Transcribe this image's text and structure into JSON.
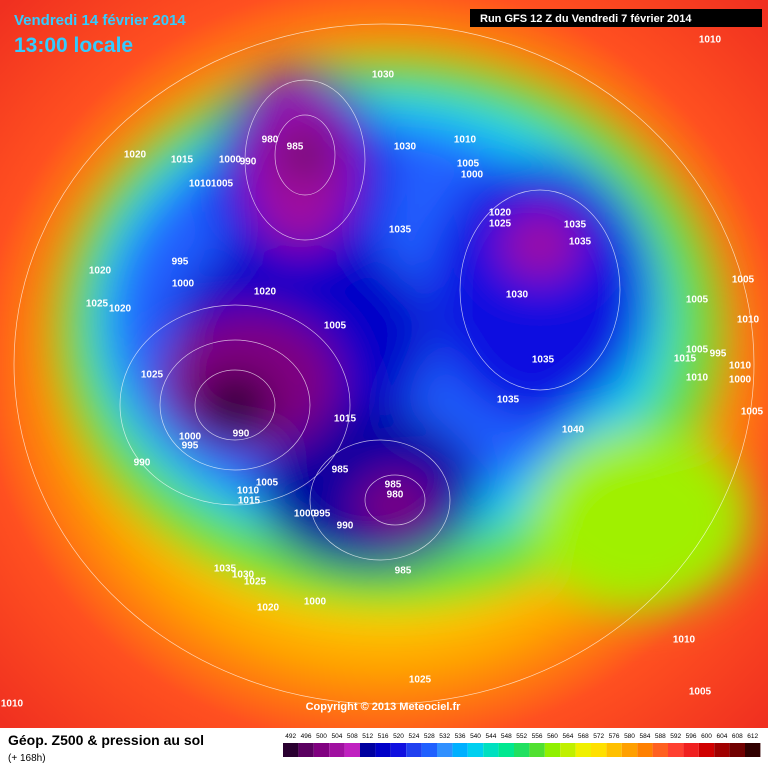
{
  "header": {
    "date": "Vendredi 14 février 2014",
    "time": "13:00 locale",
    "run": "Run GFS 12 Z du Vendredi 7 février 2014"
  },
  "copyright": "Copyright © 2013 Meteociel.fr",
  "footer": {
    "title": "Géop. Z500 & pression au sol",
    "lead": "(+ 168h)"
  },
  "scale": {
    "labels": [
      "492",
      "496",
      "500",
      "504",
      "508",
      "512",
      "516",
      "520",
      "524",
      "528",
      "532",
      "536",
      "540",
      "544",
      "548",
      "552",
      "556",
      "560",
      "564",
      "568",
      "572",
      "576",
      "580",
      "584",
      "588",
      "592",
      "596",
      "600",
      "604",
      "608",
      "612"
    ],
    "colors": [
      "#2a0030",
      "#5a0060",
      "#800080",
      "#a010a0",
      "#c020c0",
      "#0000a0",
      "#0000c8",
      "#1010e0",
      "#2040f0",
      "#2060ff",
      "#3090ff",
      "#00b0ff",
      "#00d0f0",
      "#00e0c0",
      "#00e890",
      "#20e060",
      "#50e030",
      "#90f000",
      "#c0f000",
      "#f0f000",
      "#ffe000",
      "#ffc000",
      "#ffa000",
      "#ff8000",
      "#ff6020",
      "#ff4030",
      "#f02020",
      "#d00000",
      "#a00000",
      "#700000",
      "#300000"
    ]
  },
  "pressure_labels": [
    "1030",
    "1010",
    "980",
    "985",
    "1020",
    "1015",
    "1000",
    "990",
    "1010",
    "1005",
    "1030",
    "1010",
    "1005",
    "1000",
    "1035",
    "1020",
    "1025",
    "1035",
    "1035",
    "995",
    "1000",
    "1020",
    "1020",
    "1025",
    "1020",
    "1030",
    "1005",
    "1005",
    "1010",
    "1005",
    "1005",
    "1015",
    "995",
    "1010",
    "1010",
    "1000",
    "1025",
    "1035",
    "1035",
    "1015",
    "1040",
    "990",
    "1000",
    "995",
    "1005",
    "990",
    "985",
    "985",
    "980",
    "1005",
    "1010",
    "1015",
    "1000",
    "995",
    "990",
    "985",
    "1035",
    "1030",
    "1025",
    "1020",
    "1000",
    "1010",
    "1025",
    "1005",
    "1010"
  ]
}
